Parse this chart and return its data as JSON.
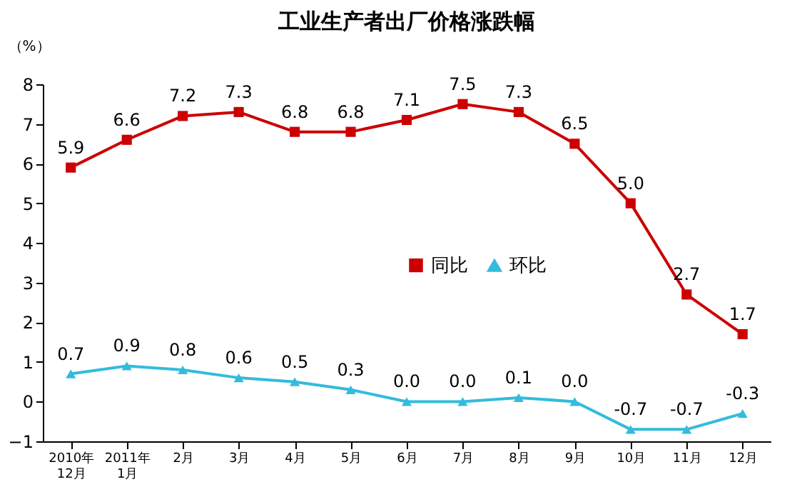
{
  "chart_data": {
    "type": "line",
    "title": "工业生产者出厂价格涨跌幅",
    "ylabel": "（%）",
    "categories": [
      "2010年\n12月",
      "2011年\n1月",
      "2月",
      "3月",
      "4月",
      "5月",
      "6月",
      "7月",
      "8月",
      "9月",
      "10月",
      "11月",
      "12月"
    ],
    "series": [
      {
        "name": "同比",
        "color": "#cc0000",
        "marker": "square",
        "values": [
          5.9,
          6.6,
          7.2,
          7.3,
          6.8,
          6.8,
          7.1,
          7.5,
          7.3,
          6.5,
          5.0,
          2.7,
          1.7
        ],
        "value_labels": [
          "5.9",
          "6.6",
          "7.2",
          "7.3",
          "6.8",
          "6.8",
          "7.1",
          "7.5",
          "7.3",
          "6.5",
          "5.0",
          "2.7",
          "1.7"
        ]
      },
      {
        "name": "环比",
        "color": "#33bbdd",
        "marker": "triangle",
        "values": [
          0.7,
          0.9,
          0.8,
          0.6,
          0.5,
          0.3,
          0.0,
          0.0,
          0.1,
          0.0,
          -0.7,
          -0.7,
          -0.3
        ],
        "value_labels": [
          "0.7",
          "0.9",
          "0.8",
          "0.6",
          "0.5",
          "0.3",
          "0.0",
          "0.0",
          "0.1",
          "0.0",
          "-0.7",
          "-0.7",
          "-0.3"
        ]
      }
    ],
    "ylim": [
      -1,
      8
    ],
    "yticks": [
      -1,
      0,
      1,
      2,
      3,
      4,
      5,
      6,
      7,
      8
    ],
    "grid": false,
    "legend": "center"
  }
}
